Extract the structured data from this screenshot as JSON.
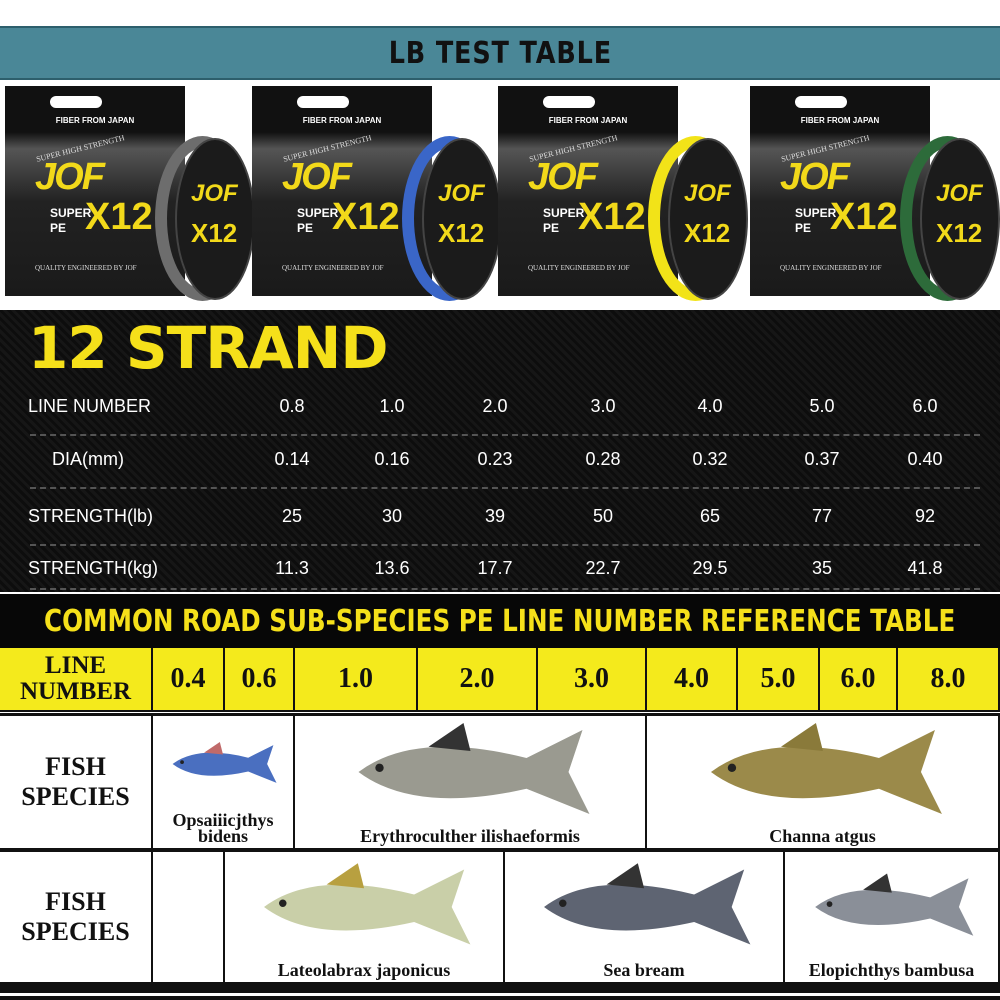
{
  "title": "LB TEST TABLE",
  "products": [
    {
      "box_top": "FIBER FROM JAPAN",
      "arc": "SUPER HIGH STRENGTH",
      "brand": "JOF",
      "super": "SUPER",
      "pe": "PE",
      "model": "X12",
      "quality": "QUALITY ENGINEERED BY JOF",
      "line_color": "#6d6d6d"
    },
    {
      "box_top": "FIBER FROM JAPAN",
      "arc": "SUPER HIGH STRENGTH",
      "brand": "JOF",
      "super": "SUPER",
      "pe": "PE",
      "model": "X12",
      "quality": "QUALITY ENGINEERED BY JOF",
      "line_color": "#3a66c8"
    },
    {
      "box_top": "FIBER FROM JAPAN",
      "arc": "SUPER HIGH STRENGTH",
      "brand": "JOF",
      "super": "SUPER",
      "pe": "PE",
      "model": "X12",
      "quality": "QUALITY ENGINEERED BY JOF",
      "line_color": "#f2e318"
    },
    {
      "box_top": "FIBER FROM JAPAN",
      "arc": "SUPER HIGH STRENGTH",
      "brand": "JOF",
      "super": "SUPER",
      "pe": "PE",
      "model": "X12",
      "quality": "QUALITY ENGINEERED BY JOF",
      "line_color": "#2d6b3a"
    }
  ],
  "strand_table": {
    "heading": "12 STRAND",
    "rows": [
      {
        "label": "LINE NUMBER",
        "values": [
          "0.8",
          "1.0",
          "2.0",
          "3.0",
          "4.0",
          "5.0",
          "6.0"
        ]
      },
      {
        "label": "DIA(mm)",
        "values": [
          "0.14",
          "0.16",
          "0.23",
          "0.28",
          "0.32",
          "0.37",
          "0.40"
        ]
      },
      {
        "label": "STRENGTH(lb)",
        "values": [
          "25",
          "30",
          "39",
          "50",
          "65",
          "77",
          "92"
        ]
      },
      {
        "label": "STRENGTH(kg)",
        "values": [
          "11.3",
          "13.6",
          "17.7",
          "22.7",
          "29.5",
          "35",
          "41.8"
        ]
      }
    ]
  },
  "reference_table": {
    "heading": "COMMON ROAD SUB-SPECIES PE LINE NUMBER REFERENCE TABLE",
    "line_number_label": "LINE NUMBER",
    "line_numbers": [
      "0.4",
      "0.6",
      "1.0",
      "2.0",
      "3.0",
      "4.0",
      "5.0",
      "6.0",
      "8.0"
    ],
    "fish_species_label": "FISH SPECIES",
    "row1": [
      "Opsaiiicjthys bidens",
      "Erythroculther ilishaeformis",
      "Channa atgus"
    ],
    "row2": [
      "Lateolabrax japonicus",
      "Sea bream",
      "Elopichthys bambusa"
    ]
  },
  "colors": {
    "title_bar": "#4a8797",
    "accent_yellow": "#f4ea1c"
  }
}
